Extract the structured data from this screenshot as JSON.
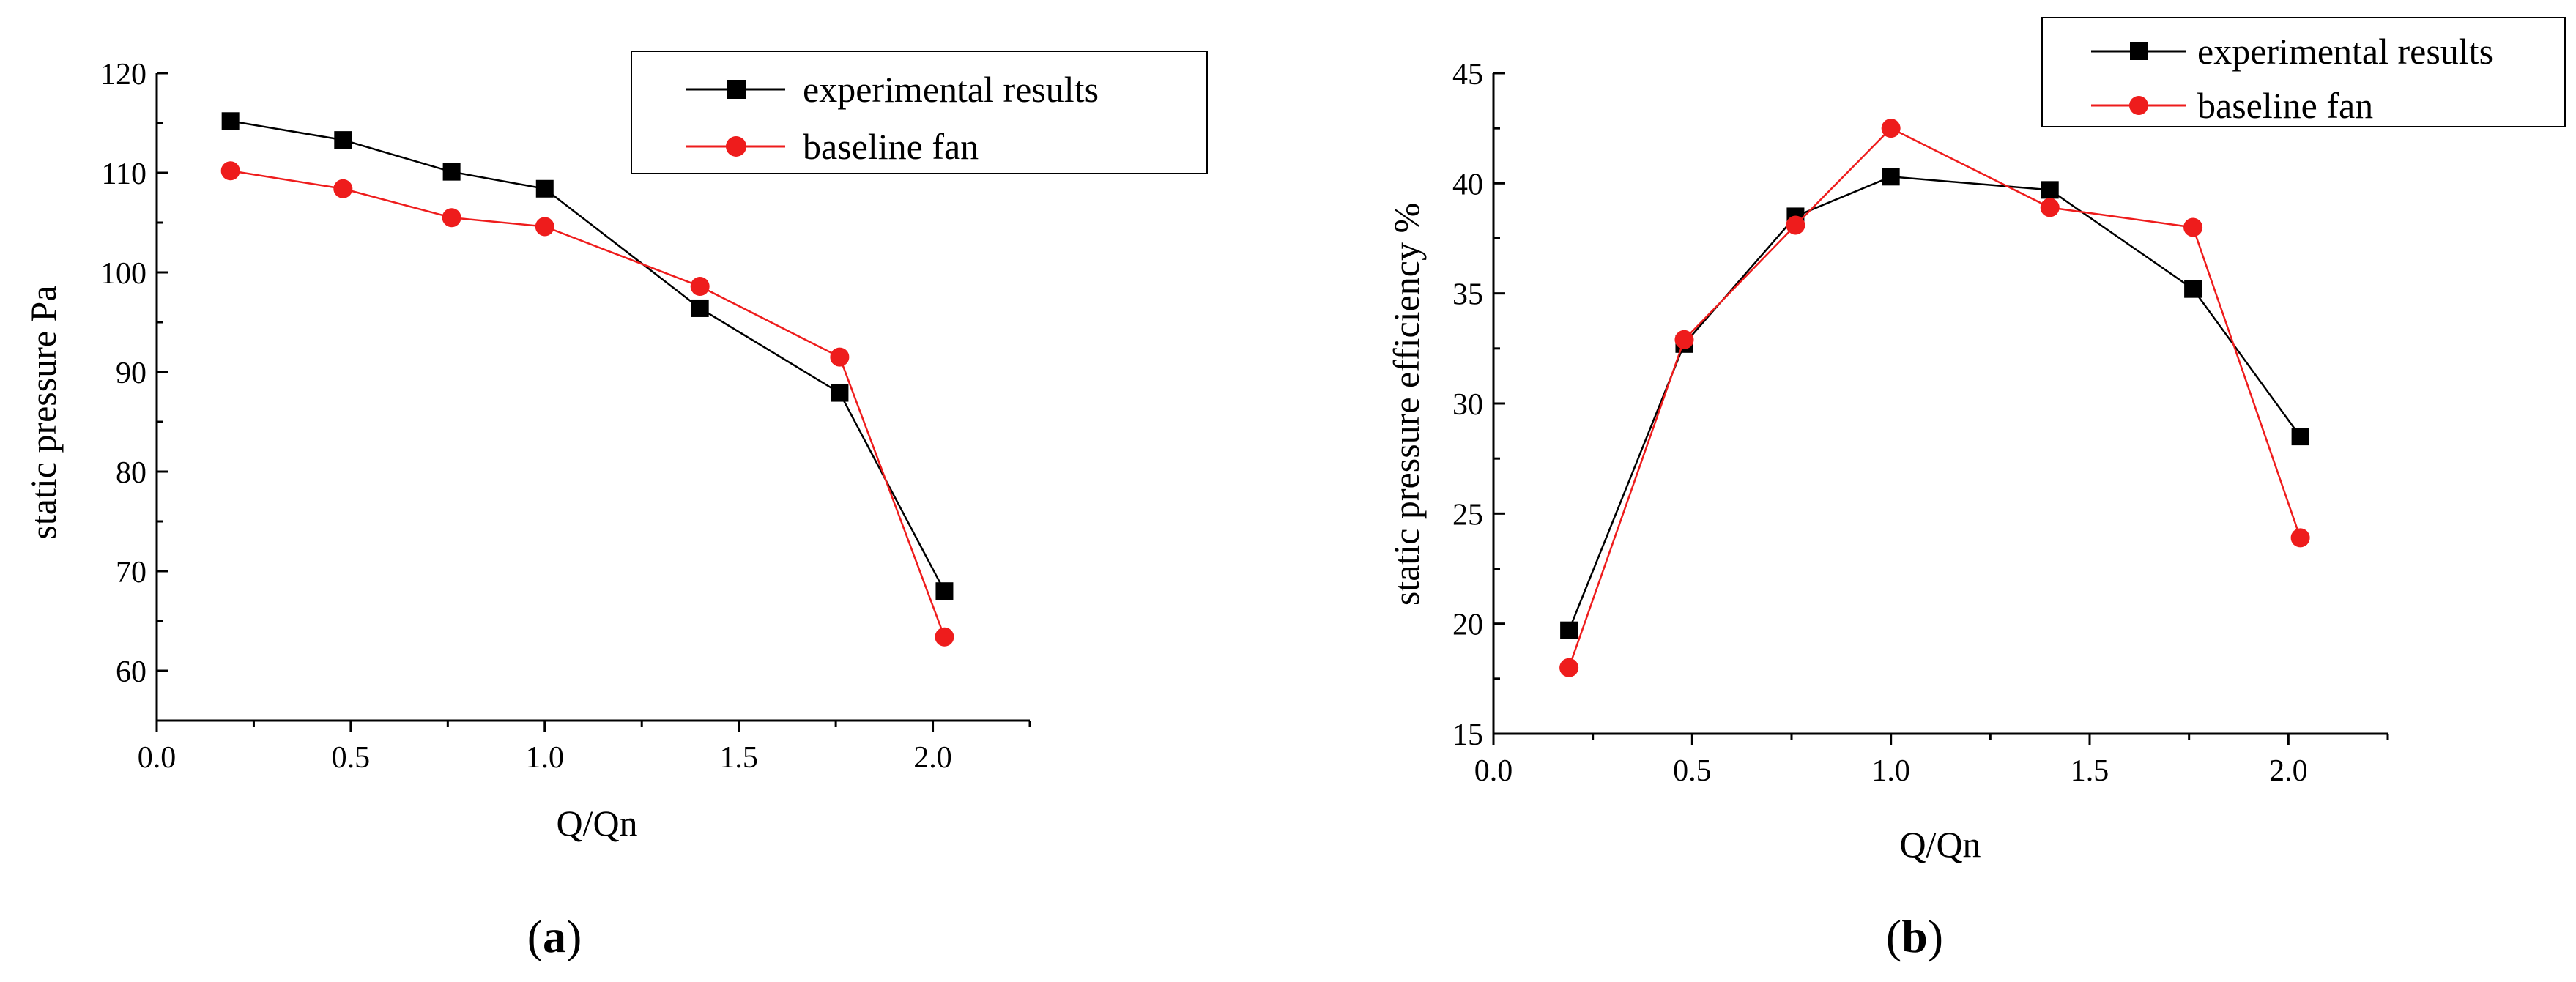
{
  "chart_data": [
    {
      "type": "line",
      "panel_label": "a",
      "title": "",
      "xlabel": "Q/Qn",
      "ylabel": "static pressure Pa",
      "xlim": [
        0.0,
        2.25
      ],
      "ylim": [
        55,
        120
      ],
      "xticks": [
        0.0,
        0.5,
        1.0,
        1.5,
        2.0
      ],
      "xtick_labels": [
        "0.0",
        "0.5",
        "1.0",
        "1.5",
        "2.0"
      ],
      "yticks": [
        60,
        70,
        80,
        90,
        100,
        110,
        120
      ],
      "ytick_labels": [
        "60",
        "70",
        "80",
        "90",
        "100",
        "110",
        "120"
      ],
      "legend_position": "top-right",
      "series": [
        {
          "name": "experimental results",
          "color": "#000000",
          "marker": "square",
          "x": [
            0.19,
            0.48,
            0.76,
            1.0,
            1.4,
            1.76,
            2.03
          ],
          "y": [
            115.2,
            113.3,
            110.1,
            108.4,
            96.4,
            87.9,
            68.0
          ]
        },
        {
          "name": "baseline fan",
          "color": "#ee1c1c",
          "marker": "circle",
          "x": [
            0.19,
            0.48,
            0.76,
            1.0,
            1.4,
            1.76,
            2.03
          ],
          "y": [
            110.2,
            108.4,
            105.5,
            104.6,
            98.6,
            91.5,
            63.4
          ]
        }
      ]
    },
    {
      "type": "line",
      "panel_label": "b",
      "title": "",
      "xlabel": "Q/Qn",
      "ylabel": "static pressure efficiency %",
      "xlim": [
        0.0,
        2.25
      ],
      "ylim": [
        15,
        45
      ],
      "xticks": [
        0.0,
        0.5,
        1.0,
        1.5,
        2.0
      ],
      "xtick_labels": [
        "0.0",
        "0.5",
        "1.0",
        "1.5",
        "2.0"
      ],
      "yticks": [
        15,
        20,
        25,
        30,
        35,
        40,
        45
      ],
      "ytick_labels": [
        "15",
        "20",
        "25",
        "30",
        "35",
        "40",
        "45"
      ],
      "legend_position": "top-right",
      "series": [
        {
          "name": "experimental results",
          "color": "#000000",
          "marker": "square",
          "x": [
            0.19,
            0.48,
            0.76,
            1.0,
            1.4,
            1.76,
            2.03
          ],
          "y": [
            19.7,
            32.7,
            38.5,
            40.3,
            39.7,
            35.2,
            28.5
          ]
        },
        {
          "name": "baseline fan",
          "color": "#ee1c1c",
          "marker": "circle",
          "x": [
            0.19,
            0.48,
            0.76,
            1.0,
            1.4,
            1.76,
            2.03
          ],
          "y": [
            18.0,
            32.9,
            38.1,
            42.5,
            38.9,
            38.0,
            23.9
          ]
        }
      ]
    }
  ]
}
